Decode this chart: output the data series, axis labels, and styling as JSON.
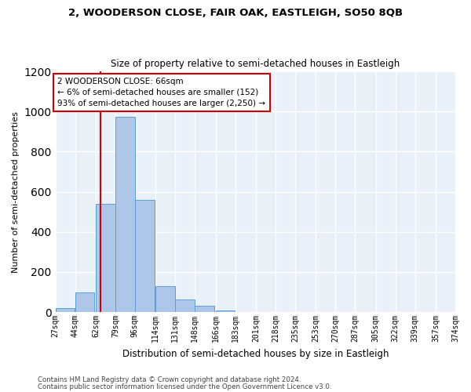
{
  "title": "2, WOODERSON CLOSE, FAIR OAK, EASTLEIGH, SO50 8QB",
  "subtitle": "Size of property relative to semi-detached houses in Eastleigh",
  "xlabel": "Distribution of semi-detached houses by size in Eastleigh",
  "ylabel": "Number of semi-detached properties",
  "bar_color": "#aec6e8",
  "bar_edge_color": "#5a9fd4",
  "bg_color": "#eaf0f8",
  "grid_color": "#ffffff",
  "annotation_line_color": "#cc0000",
  "annotation_box_color": "#cc0000",
  "annotation_text": "2 WOODERSON CLOSE: 66sqm\n← 6% of semi-detached houses are smaller (152)\n93% of semi-detached houses are larger (2,250) →",
  "property_size": 66,
  "bin_edges": [
    27,
    44,
    62,
    79,
    96,
    114,
    131,
    148,
    166,
    183,
    201,
    218,
    235,
    253,
    270,
    287,
    305,
    322,
    339,
    357,
    374
  ],
  "bin_labels": [
    "27sqm",
    "44sqm",
    "62sqm",
    "79sqm",
    "96sqm",
    "114sqm",
    "131sqm",
    "148sqm",
    "166sqm",
    "183sqm",
    "201sqm",
    "218sqm",
    "235sqm",
    "253sqm",
    "270sqm",
    "287sqm",
    "305sqm",
    "322sqm",
    "339sqm",
    "357sqm",
    "374sqm"
  ],
  "bar_heights": [
    20,
    100,
    540,
    975,
    560,
    130,
    65,
    30,
    10,
    0,
    0,
    0,
    0,
    0,
    0,
    0,
    0,
    0,
    0,
    0
  ],
  "ylim": [
    0,
    1200
  ],
  "yticks": [
    0,
    200,
    400,
    600,
    800,
    1000,
    1200
  ],
  "footer_line1": "Contains HM Land Registry data © Crown copyright and database right 2024.",
  "footer_line2": "Contains public sector information licensed under the Open Government Licence v3.0."
}
